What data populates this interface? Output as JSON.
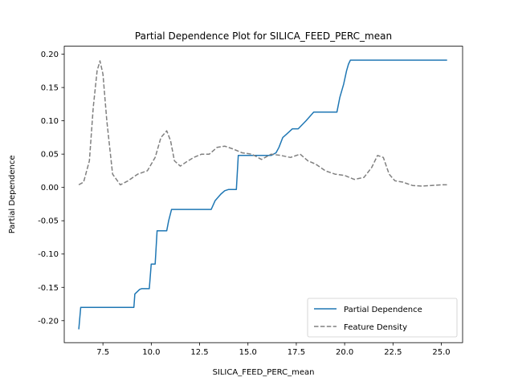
{
  "chart_data": {
    "type": "line",
    "title": "Partial Dependence Plot for SILICA_FEED_PERC_mean",
    "xlabel": "SILICA_FEED_PERC_mean",
    "ylabel": "Partial Dependence",
    "xlim": [
      5.5,
      26.1
    ],
    "ylim": [
      -0.233,
      0.212
    ],
    "xticks": [
      7.5,
      10.0,
      12.5,
      15.0,
      17.5,
      20.0,
      22.5,
      25.0
    ],
    "xtick_labels": [
      "7.5",
      "10.0",
      "12.5",
      "15.0",
      "17.5",
      "20.0",
      "22.5",
      "25.0"
    ],
    "yticks": [
      -0.2,
      -0.15,
      -0.1,
      -0.05,
      0.0,
      0.05,
      0.1,
      0.15,
      0.2
    ],
    "ytick_labels": [
      "-0.20",
      "-0.15",
      "-0.10",
      "-0.05",
      "0.00",
      "0.05",
      "0.10",
      "0.15",
      "0.20"
    ],
    "grid": false,
    "legend_position": "lower-right",
    "series": [
      {
        "name": "Partial Dependence",
        "style": "solid",
        "color": "#1f77b4",
        "x": [
          6.25,
          6.35,
          9.1,
          9.15,
          9.4,
          9.5,
          9.9,
          10.0,
          10.2,
          10.3,
          10.8,
          10.9,
          11.05,
          13.1,
          13.3,
          13.6,
          13.8,
          14.0,
          14.4,
          14.5,
          16.2,
          16.45,
          16.6,
          16.8,
          17.0,
          17.3,
          17.6,
          18.0,
          18.4,
          19.6,
          19.75,
          19.95,
          20.1,
          20.2,
          20.3,
          25.3
        ],
        "y": [
          -0.213,
          -0.18,
          -0.18,
          -0.16,
          -0.153,
          -0.152,
          -0.152,
          -0.115,
          -0.115,
          -0.065,
          -0.065,
          -0.05,
          -0.033,
          -0.033,
          -0.02,
          -0.01,
          -0.005,
          -0.003,
          -0.003,
          0.048,
          0.048,
          0.052,
          0.06,
          0.075,
          0.08,
          0.088,
          0.088,
          0.1,
          0.113,
          0.113,
          0.135,
          0.155,
          0.175,
          0.185,
          0.191,
          0.191
        ]
      },
      {
        "name": "Feature Density",
        "style": "dashed",
        "color": "#808080",
        "x": [
          6.25,
          6.5,
          6.8,
          7.0,
          7.2,
          7.35,
          7.5,
          7.7,
          8.0,
          8.4,
          8.8,
          9.3,
          9.8,
          10.2,
          10.5,
          10.8,
          11.0,
          11.2,
          11.5,
          11.8,
          12.2,
          12.6,
          13.0,
          13.4,
          13.8,
          14.2,
          14.7,
          15.2,
          15.7,
          16.2,
          16.7,
          17.2,
          17.7,
          18.1,
          18.5,
          19.0,
          19.5,
          20.0,
          20.5,
          21.0,
          21.4,
          21.7,
          22.0,
          22.3,
          22.6,
          23.0,
          23.5,
          24.0,
          24.5,
          25.0,
          25.3
        ],
        "y": [
          0.004,
          0.008,
          0.04,
          0.12,
          0.175,
          0.19,
          0.17,
          0.1,
          0.02,
          0.004,
          0.01,
          0.02,
          0.025,
          0.045,
          0.075,
          0.085,
          0.07,
          0.04,
          0.032,
          0.038,
          0.045,
          0.05,
          0.05,
          0.06,
          0.062,
          0.058,
          0.052,
          0.05,
          0.042,
          0.05,
          0.048,
          0.045,
          0.05,
          0.04,
          0.035,
          0.025,
          0.02,
          0.018,
          0.012,
          0.015,
          0.03,
          0.048,
          0.045,
          0.02,
          0.01,
          0.008,
          0.003,
          0.002,
          0.003,
          0.004,
          0.004
        ]
      }
    ]
  }
}
